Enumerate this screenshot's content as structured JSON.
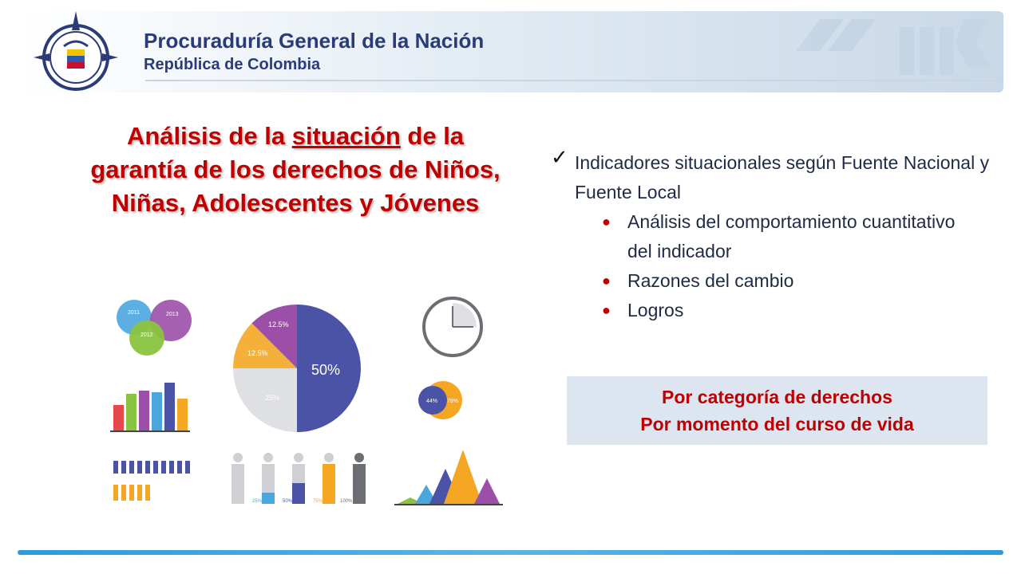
{
  "header": {
    "org_title": "Procuraduría General de la Nación",
    "org_subtitle": "República de Colombia"
  },
  "title": {
    "line1_pre": "Análisis de la ",
    "line1_underlined": "situación",
    "line1_post": "  de  la",
    "line2": "garantía de los derechos de Niños,",
    "line3": "Niñas, Adolescentes y Jóvenes"
  },
  "checklist": {
    "main_item": "Indicadores situacionales según Fuente Nacional y Fuente Local",
    "sub_items": [
      "Análisis del comportamiento cuantitativo del indicador",
      "Razones del cambio",
      "Logros"
    ]
  },
  "callout": {
    "line1": "Por categoría de derechos",
    "line2": "Por momento del curso de vida"
  },
  "infographic": {
    "bubbles": [
      "2011",
      "2013",
      "2012"
    ],
    "pie_labels": [
      "50%",
      "25%",
      "12.5%",
      "12.5%"
    ],
    "venn_labels": [
      "44%",
      "78%"
    ],
    "people_labels": [
      "25%",
      "50%",
      "75%",
      "100%"
    ]
  },
  "colors": {
    "title_red": "#c00000",
    "org_blue": "#2a3b7a",
    "accent_blue": "#2e9bd6",
    "callout_bg": "#dde5f0"
  }
}
